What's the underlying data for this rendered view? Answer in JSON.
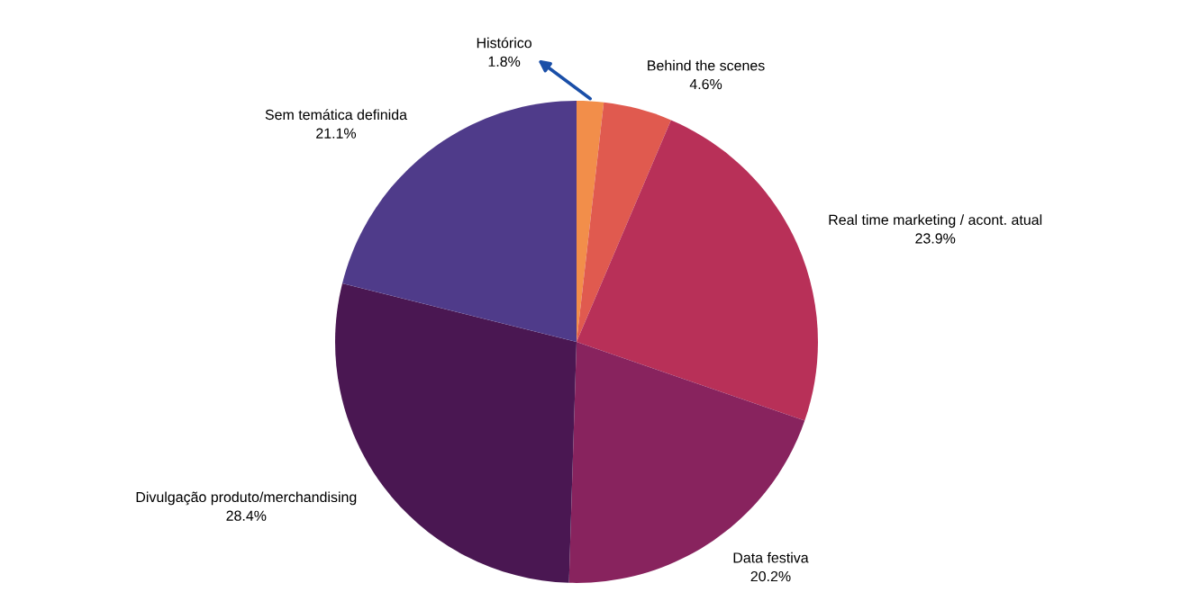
{
  "chart_data": {
    "type": "pie",
    "categories": [
      "Histórico",
      "Behind the scenes",
      "Real time marketing / acont. atual",
      "Data festiva",
      "Divulgação produto/merchandising",
      "Sem temática definida"
    ],
    "values": [
      1.8,
      4.6,
      23.9,
      20.2,
      28.4,
      21.1
    ],
    "value_labels": [
      "1.8%",
      "4.6%",
      "23.9%",
      "20.2%",
      "28.4%",
      "21.1%"
    ],
    "colors": [
      "#f28e4a",
      "#e05a4f",
      "#b83058",
      "#88235e",
      "#4a1752",
      "#4f3b8a"
    ]
  }
}
